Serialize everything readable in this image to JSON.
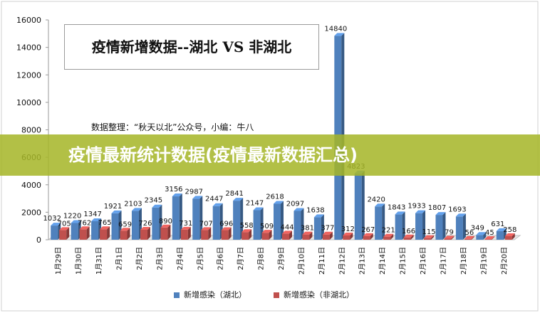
{
  "banner": {
    "text": "疫情最新统计数据(疫情最新数据汇总)"
  },
  "chart_data": {
    "type": "bar",
    "title": "疫情新增数据--湖北 VS 非湖北",
    "subtitle": "数据整理：“秋天以北”公众号，小编：牛八",
    "categories": [
      "1月29日",
      "1月30日",
      "1月31日",
      "2月1日",
      "2月2日",
      "2月3日",
      "2月4日",
      "2月5日",
      "2月6日",
      "2月7日",
      "2月8日",
      "2月9日",
      "2月10日",
      "2月11日",
      "2月12日",
      "2月13日",
      "2月14日",
      "2月15日",
      "2月16日",
      "2月17日",
      "2月18日",
      "2月19日",
      "2月20日"
    ],
    "series": [
      {
        "name": "新增感染（湖北）",
        "color": "#4f81bd",
        "values": [
          1032,
          1220,
          1347,
          1921,
          2103,
          2345,
          3156,
          2987,
          2447,
          2841,
          2147,
          2618,
          2097,
          1638,
          14840,
          4823,
          2420,
          1843,
          1933,
          1807,
          1693,
          349,
          631
        ]
      },
      {
        "name": "新增感染（非湖北）",
        "color": "#c0504d",
        "values": [
          705,
          762,
          765,
          659,
          726,
          890,
          731,
          707,
          696,
          558,
          509,
          444,
          381,
          377,
          312,
          267,
          221,
          166,
          115,
          79,
          56,
          45,
          258
        ]
      }
    ],
    "ylim": [
      0,
      16000
    ],
    "yticks": [
      0,
      2000,
      4000,
      6000,
      8000,
      10000,
      12000,
      14000,
      16000
    ],
    "grid": false,
    "legend": "bottom",
    "style": "3d-column"
  }
}
